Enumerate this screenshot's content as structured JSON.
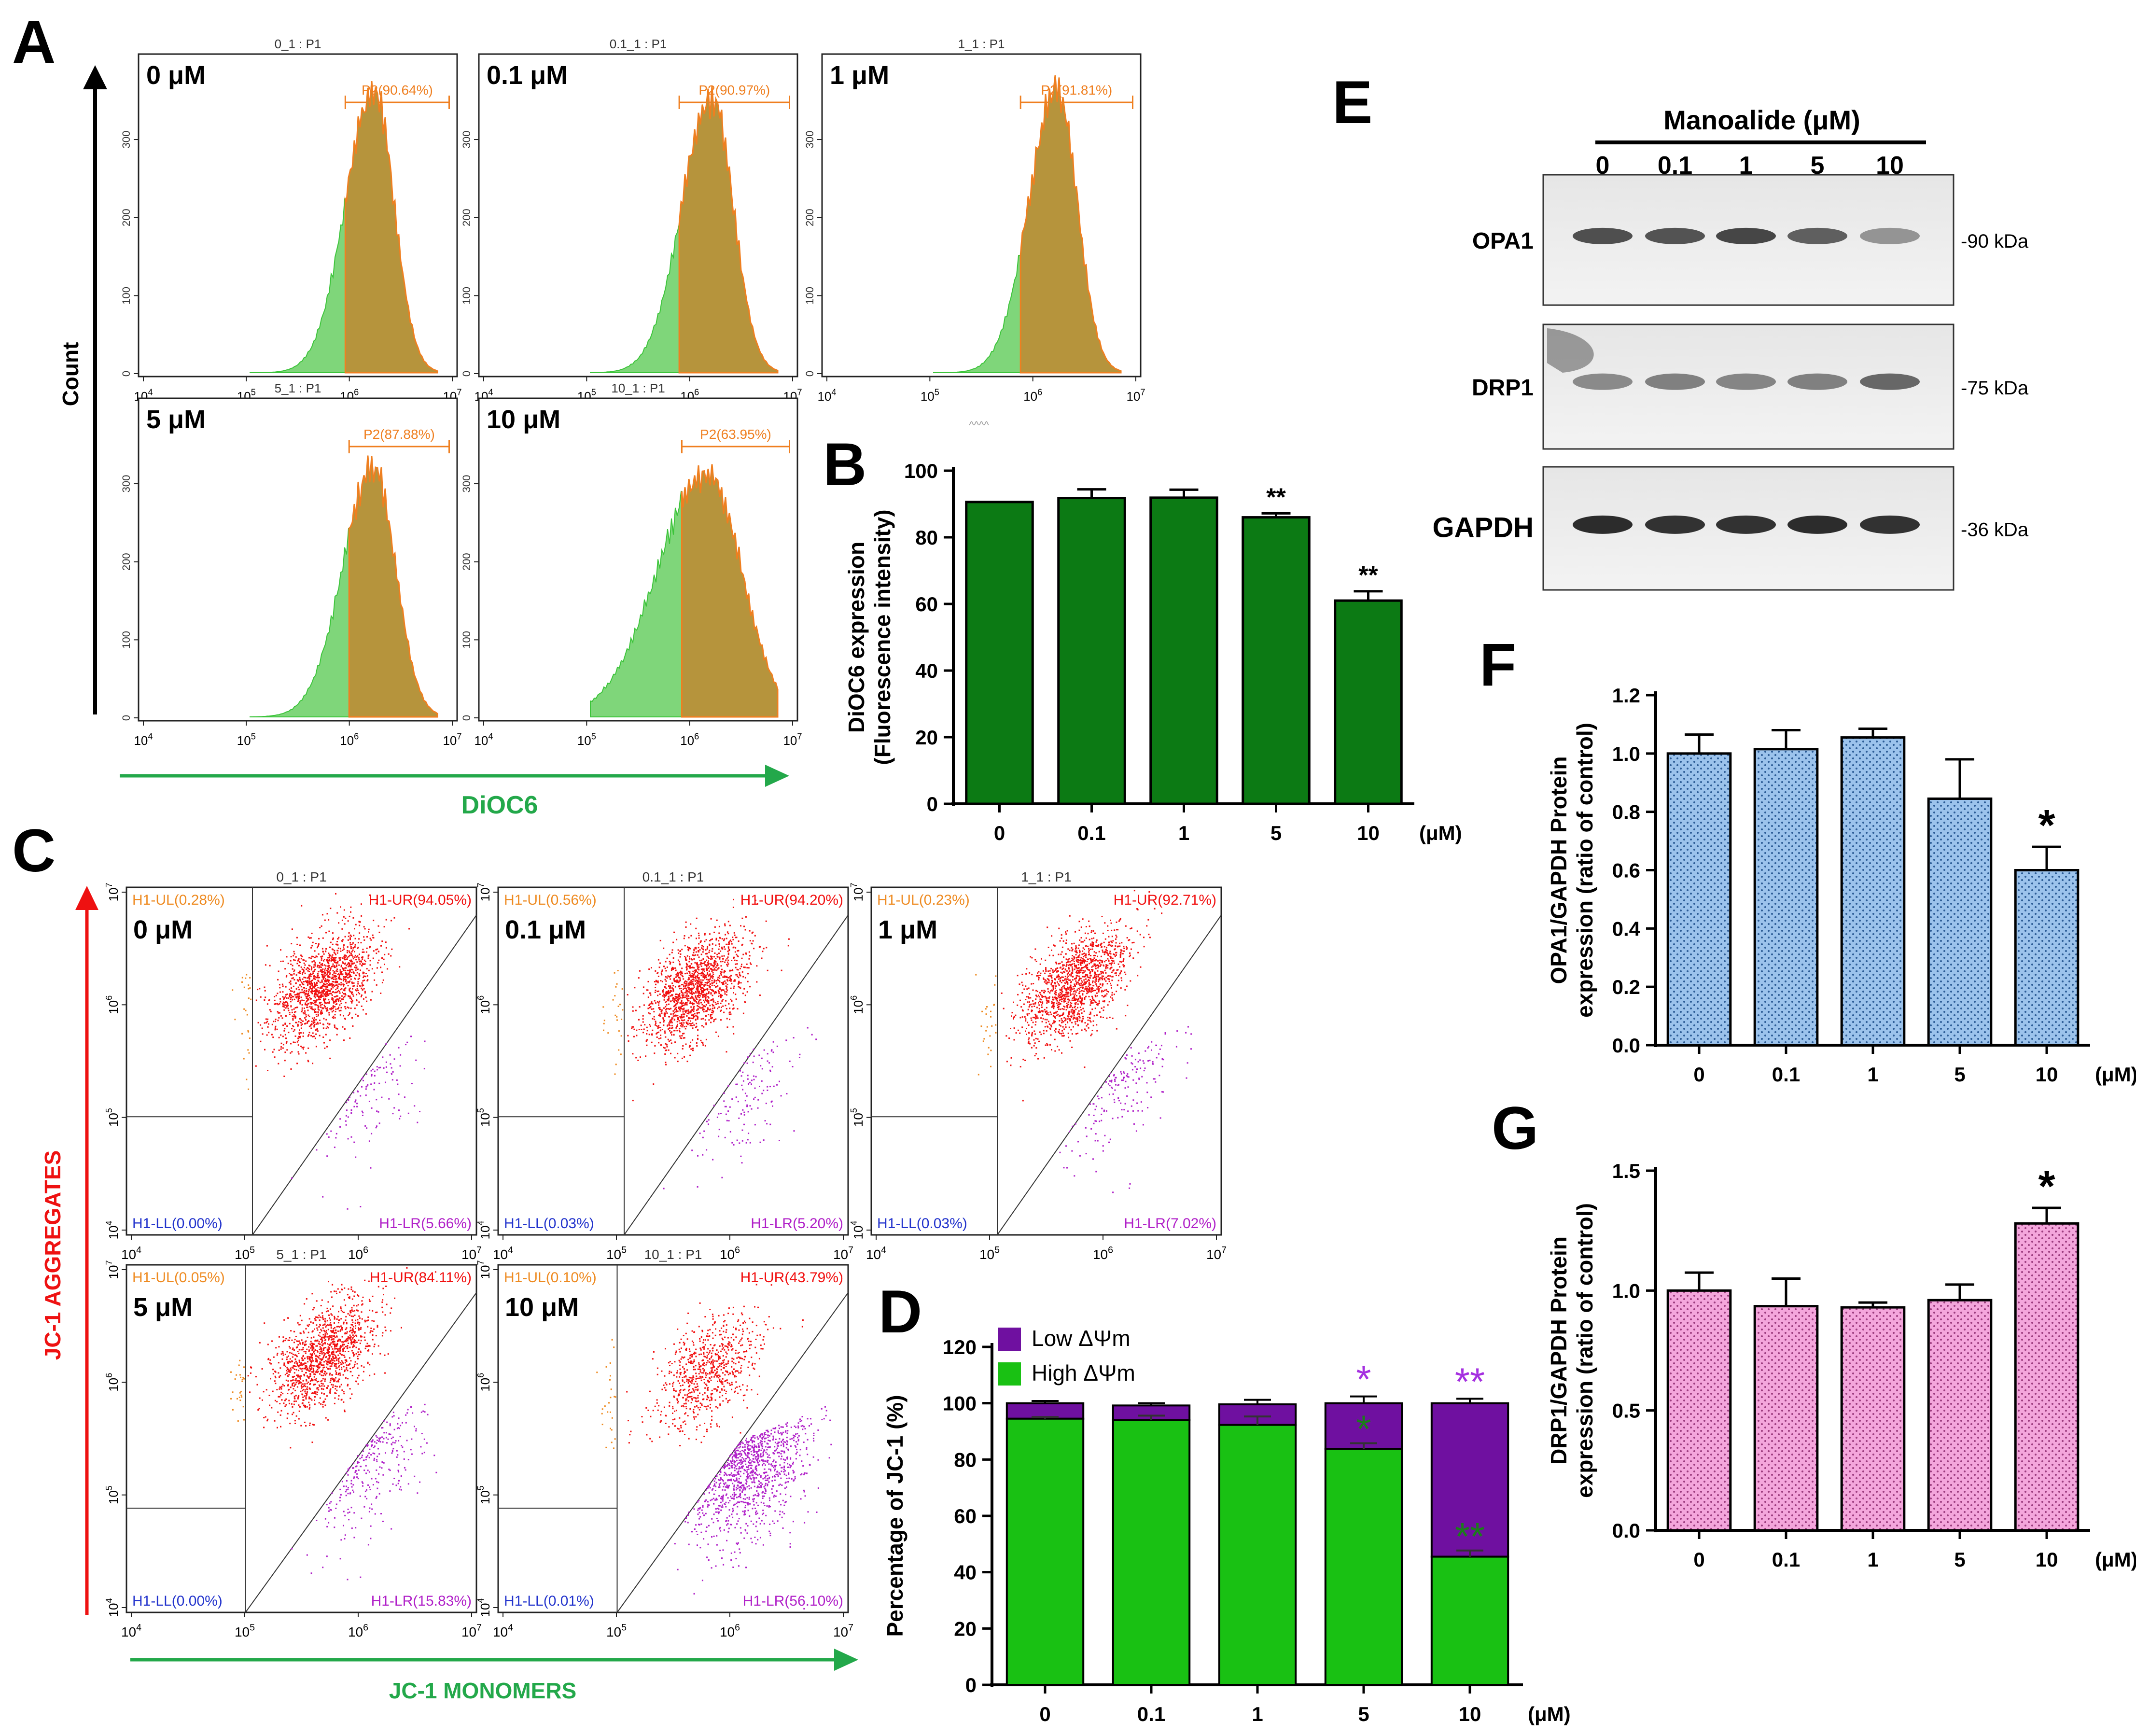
{
  "panel_labels": {
    "A": "A",
    "B": "B",
    "C": "C",
    "D": "D",
    "E": "E",
    "F": "F",
    "G": "G"
  },
  "conc_unit": "(μM)",
  "colors": {
    "hist_green": "#7fd67a",
    "hist_gold": "#b6943c",
    "hist_edge": "#ef7f20",
    "bar_B": "#0c7a14",
    "bar_F": "#9cc3ec",
    "bar_G": "#f4a6dc",
    "high": "#19c113",
    "low": "#6f10a0",
    "sig_green": "#1b7d1b",
    "sig_purple": "#a530e0",
    "dot_red": "#f11010",
    "dot_purple": "#b020c8",
    "dot_orange": "#ee8a20"
  },
  "panel_a": {
    "count_label": "Count",
    "x_label": "DiOC6",
    "y_ticks": [
      "0",
      "100",
      "200",
      "300"
    ],
    "x_tick_base": "10",
    "x_tick_exps": [
      "4",
      "5",
      "6",
      "7"
    ],
    "stray_text": "^^^^",
    "plots": [
      {
        "title": "0_1 : P1",
        "dose": "0 μM",
        "gate": "P2(90.64%)"
      },
      {
        "title": "0.1_1 : P1",
        "dose": "0.1 μM",
        "gate": "P2(90.97%)"
      },
      {
        "title": "1_1 : P1",
        "dose": "1 μM",
        "gate": "P2(91.81%)"
      },
      {
        "title": "5_1 : P1",
        "dose": "5 μM",
        "gate": "P2(87.88%)"
      },
      {
        "title": "10_1 : P1",
        "dose": "10 μM",
        "gate": "P2(63.95%)"
      }
    ]
  },
  "panel_c": {
    "y_label": "JC-1 AGGREGATES",
    "x_label": "JC-1 MONOMERS",
    "tick_base": "10",
    "tick_exps": [
      "4",
      "5",
      "6",
      "7"
    ],
    "plots": [
      {
        "title": "0_1 : P1",
        "dose": "0 μM",
        "ul": "H1-UL(0.28%)",
        "ur": "H1-UR(94.05%)",
        "ll": "H1-LL(0.00%)",
        "lr": "H1-LR(5.66%)"
      },
      {
        "title": "0.1_1 : P1",
        "dose": "0.1 μM",
        "ul": "H1-UL(0.56%)",
        "ur": "H1-UR(94.20%)",
        "ll": "H1-LL(0.03%)",
        "lr": "H1-LR(5.20%)"
      },
      {
        "title": "1_1 : P1",
        "dose": "1 μM",
        "ul": "H1-UL(0.23%)",
        "ur": "H1-UR(92.71%)",
        "ll": "H1-LL(0.03%)",
        "lr": "H1-LR(7.02%)"
      },
      {
        "title": "5_1 : P1",
        "dose": "5 μM",
        "ul": "H1-UL(0.05%)",
        "ur": "H1-UR(84.11%)",
        "ll": "H1-LL(0.00%)",
        "lr": "H1-LR(15.83%)"
      },
      {
        "title": "10_1 : P1",
        "dose": "10 μM",
        "ul": "H1-UL(0.10%)",
        "ur": "H1-UR(43.79%)",
        "ll": "H1-LL(0.01%)",
        "lr": "H1-LR(56.10%)"
      }
    ]
  },
  "panel_e": {
    "header": "Manoalide (μM)",
    "lanes": [
      "0",
      "0.1",
      "1",
      "5",
      "10"
    ],
    "blots": [
      {
        "label": "OPA1",
        "kda": "-90 kDa",
        "intensity": [
          0.8,
          0.78,
          0.85,
          0.72,
          0.45
        ]
      },
      {
        "label": "DRP1",
        "kda": "-75 kDa",
        "intensity": [
          0.5,
          0.55,
          0.52,
          0.55,
          0.68
        ]
      },
      {
        "label": "GAPDH",
        "kda": "-36 kDa",
        "intensity": [
          0.98,
          0.95,
          0.95,
          0.98,
          0.95
        ]
      }
    ]
  },
  "chart_data": [
    {
      "id": "B",
      "type": "bar",
      "title": "",
      "categories": [
        "0",
        "0.1",
        "1",
        "5",
        "10"
      ],
      "values": [
        90.6,
        91.8,
        91.9,
        86.0,
        61.0
      ],
      "errors": [
        0,
        2.6,
        2.4,
        1.2,
        2.8
      ],
      "significance": [
        "",
        "",
        "",
        "**",
        "**"
      ],
      "ylabel_lines": [
        "DiOC6 expression",
        "(Fluorescence intensity)"
      ],
      "xlabel": "(μM)",
      "ylim": [
        0,
        100
      ],
      "yticks": [
        0,
        20,
        40,
        60,
        80,
        100
      ],
      "ytick_labels": [
        "0",
        "20",
        "40",
        "60",
        "80",
        "100"
      ]
    },
    {
      "id": "D",
      "type": "bar",
      "stacked": true,
      "categories": [
        "0",
        "0.1",
        "1",
        "5",
        "10"
      ],
      "series": [
        {
          "name": "High ΔΨm",
          "values": [
            94.5,
            94.0,
            92.3,
            83.8,
            45.5
          ],
          "errors": [
            0.6,
            1.6,
            3.0,
            2.0,
            2.2
          ],
          "significance": [
            "",
            "",
            "",
            "*",
            "**"
          ]
        },
        {
          "name": "Low ΔΨm",
          "values": [
            5.5,
            5.2,
            7.3,
            16.2,
            54.5
          ],
          "errors": [
            0.8,
            0.8,
            1.6,
            2.4,
            1.6
          ],
          "significance": [
            "",
            "",
            "",
            "*",
            "**"
          ]
        }
      ],
      "ylabel": "Percentage of JC-1 (%)",
      "xlabel": "(μM)",
      "ylim": [
        0,
        120
      ],
      "yticks": [
        0,
        20,
        40,
        60,
        80,
        100,
        120
      ],
      "ytick_labels": [
        "0",
        "20",
        "40",
        "60",
        "80",
        "100",
        "120"
      ],
      "legend": "top-left"
    },
    {
      "id": "F",
      "type": "bar",
      "categories": [
        "0",
        "0.1",
        "1",
        "5",
        "10"
      ],
      "values": [
        1.0,
        1.015,
        1.055,
        0.845,
        0.6
      ],
      "errors": [
        0.065,
        0.065,
        0.03,
        0.135,
        0.08
      ],
      "significance": [
        "",
        "",
        "",
        "",
        "*"
      ],
      "ylabel_lines": [
        "OPA1/GAPDH Protein",
        "expression (ratio of control)"
      ],
      "xlabel": "(μM)",
      "ylim": [
        0,
        1.2
      ],
      "yticks": [
        0,
        0.2,
        0.4,
        0.6,
        0.8,
        1.0,
        1.2
      ],
      "ytick_labels": [
        "0.0",
        "0.2",
        "0.4",
        "0.6",
        "0.8",
        "1.0",
        "1.2"
      ]
    },
    {
      "id": "G",
      "type": "bar",
      "categories": [
        "0",
        "0.1",
        "1",
        "5",
        "10"
      ],
      "values": [
        1.0,
        0.935,
        0.93,
        0.96,
        1.28
      ],
      "errors": [
        0.075,
        0.115,
        0.02,
        0.065,
        0.065
      ],
      "significance": [
        "",
        "",
        "",
        "",
        "*"
      ],
      "ylabel_lines": [
        "DRP1/GAPDH Protein",
        "expression (ratio of control)"
      ],
      "xlabel": "(μM)",
      "ylim": [
        0,
        1.5
      ],
      "yticks": [
        0,
        0.5,
        1.0,
        1.5
      ],
      "ytick_labels": [
        "0.0",
        "0.5",
        "1.0",
        "1.5"
      ]
    }
  ]
}
